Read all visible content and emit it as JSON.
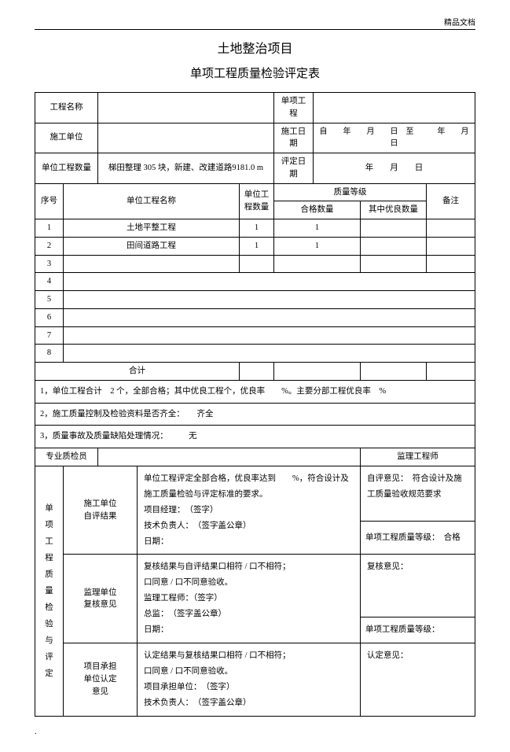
{
  "header_mark": "精品文档",
  "title_line1": "土地整治项目",
  "title_line2": "单项工程质量检验评定表",
  "top": {
    "project_name_label": "工程名称",
    "project_name_value": "",
    "single_project_label": "单项工程",
    "single_project_value": "",
    "construction_unit_label": "施工单位",
    "construction_unit_value": "",
    "construction_date_label": "施工日期",
    "construction_date_value": "自　　年　　月　　日　至　　　年　　月　日",
    "unit_eng_count_label": "单位工程数量",
    "unit_eng_count_value": "梯田整理  305 块，新建、改建道路9181.0 m",
    "eval_date_label": "评定日期",
    "eval_date_value": "年　　月　　日"
  },
  "grid": {
    "col_seq": "序号",
    "col_unit_name": "单位工程名称",
    "col_unit_qty": "单位工程数量",
    "col_quality_grade": "质量等级",
    "col_qualified_qty": "合格数量",
    "col_excellent_qty": "其中优良数量",
    "col_remark": "备注",
    "rows": [
      {
        "seq": "1",
        "name": "土地平整工程",
        "qty": "1",
        "qualified": "1",
        "excellent": "",
        "remark": ""
      },
      {
        "seq": "2",
        "name": "田间道路工程",
        "qty": "1",
        "qualified": "1",
        "excellent": "",
        "remark": ""
      },
      {
        "seq": "3",
        "name": "",
        "qty": "",
        "qualified": "",
        "excellent": "",
        "remark": ""
      },
      {
        "seq": "4",
        "name": "",
        "qty": "",
        "qualified": "",
        "excellent": "",
        "remark": ""
      },
      {
        "seq": "5",
        "name": "",
        "qty": "",
        "qualified": "",
        "excellent": "",
        "remark": ""
      },
      {
        "seq": "6",
        "name": "",
        "qty": "",
        "qualified": "",
        "excellent": "",
        "remark": ""
      },
      {
        "seq": "7",
        "name": "",
        "qty": "",
        "qualified": "",
        "excellent": "",
        "remark": ""
      },
      {
        "seq": "8",
        "name": "",
        "qty": "",
        "qualified": "",
        "excellent": "",
        "remark": ""
      }
    ],
    "total_label": "合计"
  },
  "notes": {
    "n1": "1，单位工程合计　2 个，全部合格；其中优良工程个，优良率　　%。主要分部工程优良率　%",
    "n2": "2，施工质量控制及检验资料是否齐全：　　齐全",
    "n3": "3，质量事故及质量缺陷处理情况：　　　无"
  },
  "sig": {
    "spec_inspector_label": "专业质检员",
    "super_engineer_label": "监理工程师"
  },
  "eval": {
    "side_label": "单项工程质量检验与评定",
    "row1_label1": "施工单位",
    "row1_label2": "自评结果",
    "row1_left": "单位工程评定全部合格，优良率达到　　%，符合设计及施工质量检验与评定标准的要求。\n项目经理：　（签字）\n技术负责人：　（签字盖公章）\n日期：",
    "row1_right_top": "自评意见：　符合设计及施工质量验收规范要求",
    "row1_right_bottom": "单项工程质量等级：　合格",
    "row2_label1": "监理单位",
    "row2_label2": "复核意见",
    "row2_left": "复核结果与自评结果口相符 / 口不相符；\n口同意 / 口不同意验收。\n监理工程师：（签字）\n总监：　（签字盖公章）\n日期：",
    "row2_right_top": "复核意见：",
    "row2_right_bottom": "单项工程质量等级：",
    "row3_label1": "项目承担",
    "row3_label2": "单位认定",
    "row3_label3": "意见",
    "row3_left": "认定结果与复核结果口相符 / 口不相符；\n口同意 / 口不同意验收。\n项目承担单位：　（签字）\n技术负责人：　（签字盖公章）",
    "row3_right": "认定意见："
  },
  "footer_dot": "."
}
